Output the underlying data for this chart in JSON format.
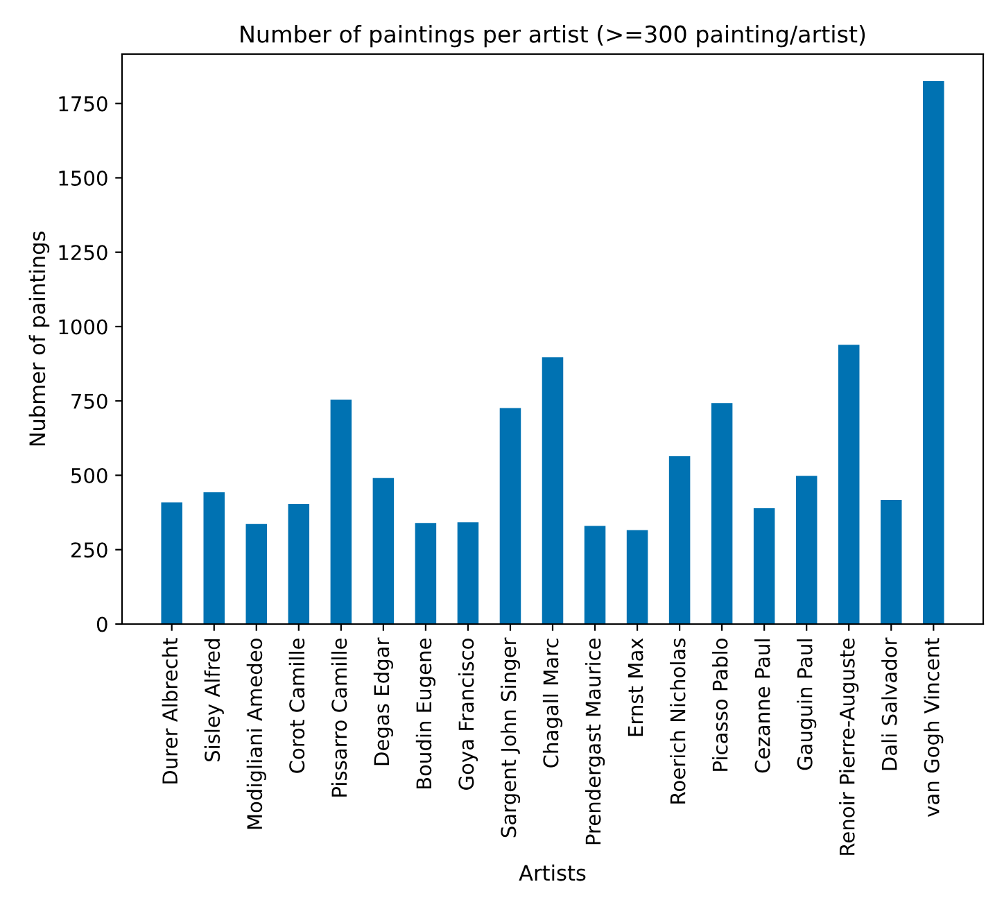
{
  "chart_data": {
    "type": "bar",
    "title": "Number of paintings per artist (>=300 painting/artist)",
    "xlabel": "Artists",
    "ylabel": "Nubmer of paintings",
    "categories": [
      "Durer Albrecht",
      "Sisley Alfred",
      "Modigliani Amedeo",
      "Corot Camille",
      "Pissarro Camille",
      "Degas Edgar",
      "Boudin Eugene",
      "Goya Francisco",
      "Sargent John Singer",
      "Chagall Marc",
      "Prendergast Maurice",
      "Ernst Max",
      "Roerich Nicholas",
      "Picasso Pablo",
      "Cezanne Paul",
      "Gauguin Paul",
      "Renoir Pierre-Auguste",
      "Dali Salvador",
      "van Gogh Vincent"
    ],
    "values": [
      409,
      443,
      336,
      403,
      754,
      491,
      340,
      342,
      726,
      897,
      330,
      316,
      564,
      743,
      389,
      498,
      939,
      417,
      1825
    ],
    "color": "#0072b2",
    "ylim": [
      0,
      1916
    ],
    "yticks": [
      0,
      250,
      500,
      750,
      1000,
      1250,
      1500,
      1750
    ],
    "grid": false,
    "legend": false
  }
}
